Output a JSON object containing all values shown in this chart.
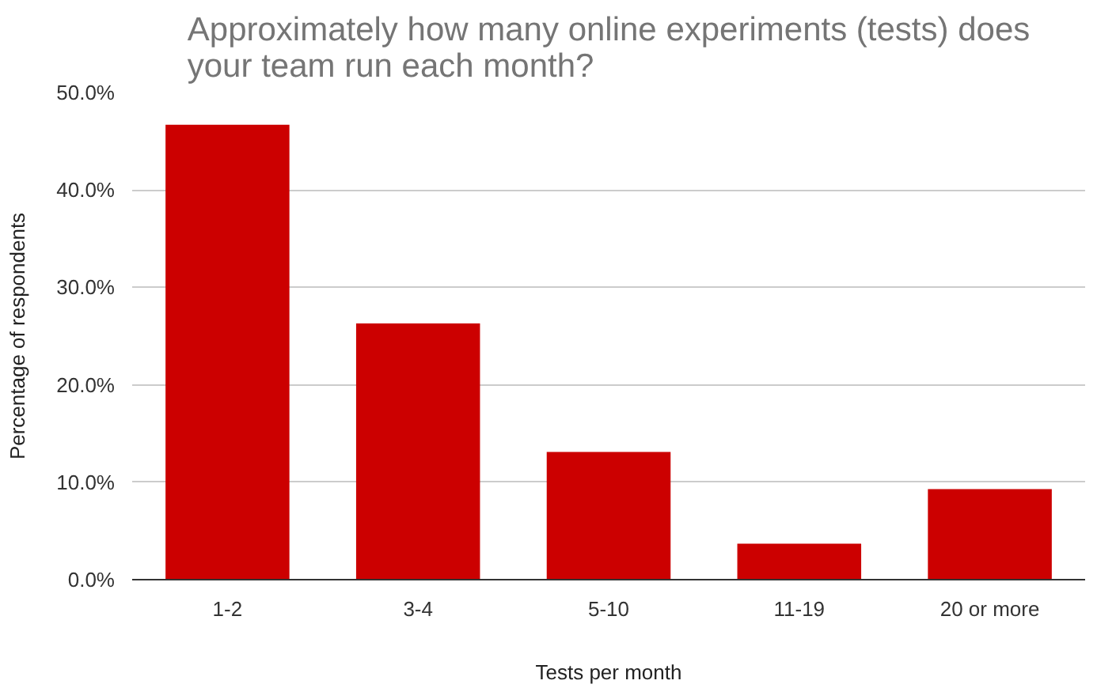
{
  "chart_data": {
    "type": "bar",
    "title": "Approximately how many online experiments (tests) does your team run each month?",
    "xlabel": "Tests per month",
    "ylabel": "Percentage of respondents",
    "categories": [
      "1-2",
      "3-4",
      "5-10",
      "11-19",
      "20 or more"
    ],
    "values": [
      46.7,
      26.3,
      13.1,
      3.7,
      9.3
    ],
    "color": "#cc0000",
    "ylim": [
      0,
      50
    ],
    "yticks": [
      {
        "value": 0,
        "label": "0.0%"
      },
      {
        "value": 10,
        "label": "10.0%"
      },
      {
        "value": 20,
        "label": "20.0%"
      },
      {
        "value": 30,
        "label": "30.0%"
      },
      {
        "value": 40,
        "label": "40.0%"
      },
      {
        "value": 50,
        "label": "50.0%"
      }
    ],
    "grid": "y"
  }
}
